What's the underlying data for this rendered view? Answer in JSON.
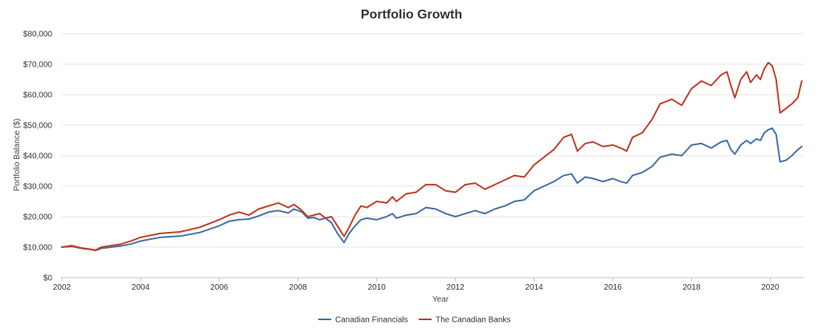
{
  "chart_data": {
    "type": "line",
    "title": "Portfolio Growth",
    "xlabel": "Year",
    "ylabel": "Portfolio Balance ($)",
    "xlim": [
      2002,
      2020.85
    ],
    "ylim": [
      0,
      80000
    ],
    "xticks": [
      2002,
      2004,
      2006,
      2008,
      2010,
      2012,
      2014,
      2016,
      2018,
      2020
    ],
    "xtick_labels": [
      "2002",
      "2004",
      "2006",
      "2008",
      "2010",
      "2012",
      "2014",
      "2016",
      "2018",
      "2020"
    ],
    "yticks": [
      0,
      10000,
      20000,
      30000,
      40000,
      50000,
      60000,
      70000,
      80000
    ],
    "ytick_labels": [
      "$0",
      "$10,000",
      "$20,000",
      "$30,000",
      "$40,000",
      "$50,000",
      "$60,000",
      "$70,000",
      "$80,000"
    ],
    "grid": true,
    "legend_position": "bottom",
    "series": [
      {
        "name": "Canadian Financials",
        "color": "#4572a7",
        "x": [
          2002.0,
          2002.25,
          2002.5,
          2002.75,
          2002.85,
          2003.0,
          2003.25,
          2003.5,
          2003.75,
          2004.0,
          2004.5,
          2005.0,
          2005.5,
          2006.0,
          2006.25,
          2006.5,
          2006.75,
          2007.0,
          2007.25,
          2007.5,
          2007.75,
          2007.9,
          2008.1,
          2008.25,
          2008.4,
          2008.55,
          2008.7,
          2008.85,
          2009.0,
          2009.17,
          2009.3,
          2009.45,
          2009.6,
          2009.75,
          2010.0,
          2010.25,
          2010.4,
          2010.5,
          2010.75,
          2011.0,
          2011.25,
          2011.5,
          2011.75,
          2012.0,
          2012.25,
          2012.5,
          2012.75,
          2013.0,
          2013.25,
          2013.5,
          2013.75,
          2014.0,
          2014.25,
          2014.5,
          2014.75,
          2014.95,
          2015.1,
          2015.3,
          2015.5,
          2015.75,
          2016.0,
          2016.2,
          2016.35,
          2016.5,
          2016.75,
          2017.0,
          2017.2,
          2017.5,
          2017.75,
          2018.0,
          2018.25,
          2018.5,
          2018.75,
          2018.9,
          2019.0,
          2019.1,
          2019.25,
          2019.4,
          2019.5,
          2019.65,
          2019.75,
          2019.85,
          2019.95,
          2020.05,
          2020.15,
          2020.25,
          2020.4,
          2020.55,
          2020.7,
          2020.8
        ],
        "values": [
          10000,
          10200,
          9600,
          9200,
          8900,
          9600,
          10000,
          10400,
          11000,
          12000,
          13200,
          13600,
          14800,
          17000,
          18500,
          19000,
          19200,
          20200,
          21500,
          22000,
          21200,
          22500,
          21500,
          19500,
          19700,
          19000,
          19500,
          18000,
          14500,
          11500,
          14500,
          17000,
          19000,
          19500,
          19000,
          20000,
          21000,
          19500,
          20500,
          21000,
          23000,
          22500,
          21000,
          20000,
          21000,
          22000,
          21000,
          22500,
          23500,
          25000,
          25500,
          28500,
          30000,
          31500,
          33500,
          34000,
          31000,
          33000,
          32500,
          31500,
          32500,
          31500,
          31000,
          33500,
          34500,
          36500,
          39500,
          40500,
          40000,
          43500,
          44000,
          42500,
          44500,
          45000,
          42000,
          40500,
          43500,
          45000,
          44000,
          45500,
          45000,
          47500,
          48500,
          49000,
          47000,
          38000,
          38500,
          40000,
          42000,
          43000
        ]
      },
      {
        "name": "The Canadian Banks",
        "color": "#c0402a",
        "x": [
          2002.0,
          2002.25,
          2002.5,
          2002.75,
          2002.85,
          2003.0,
          2003.25,
          2003.5,
          2003.75,
          2004.0,
          2004.5,
          2005.0,
          2005.5,
          2006.0,
          2006.25,
          2006.5,
          2006.75,
          2007.0,
          2007.25,
          2007.5,
          2007.75,
          2007.9,
          2008.1,
          2008.25,
          2008.4,
          2008.55,
          2008.7,
          2008.85,
          2009.0,
          2009.17,
          2009.3,
          2009.45,
          2009.6,
          2009.75,
          2010.0,
          2010.25,
          2010.4,
          2010.5,
          2010.75,
          2011.0,
          2011.25,
          2011.5,
          2011.75,
          2012.0,
          2012.25,
          2012.5,
          2012.75,
          2013.0,
          2013.25,
          2013.5,
          2013.75,
          2014.0,
          2014.25,
          2014.5,
          2014.75,
          2014.95,
          2015.1,
          2015.3,
          2015.5,
          2015.75,
          2016.0,
          2016.2,
          2016.35,
          2016.5,
          2016.75,
          2017.0,
          2017.2,
          2017.5,
          2017.75,
          2018.0,
          2018.25,
          2018.5,
          2018.75,
          2018.9,
          2019.0,
          2019.1,
          2019.25,
          2019.4,
          2019.5,
          2019.65,
          2019.75,
          2019.85,
          2019.95,
          2020.05,
          2020.15,
          2020.25,
          2020.4,
          2020.55,
          2020.7,
          2020.8
        ],
        "values": [
          10000,
          10500,
          9700,
          9300,
          9000,
          10000,
          10500,
          11000,
          12000,
          13200,
          14500,
          15000,
          16500,
          19000,
          20500,
          21500,
          20500,
          22500,
          23500,
          24500,
          23000,
          24000,
          22000,
          20000,
          20500,
          21000,
          19500,
          20000,
          17000,
          13500,
          16500,
          20500,
          23500,
          23000,
          25000,
          24500,
          26500,
          25000,
          27500,
          28000,
          30500,
          30500,
          28500,
          28000,
          30500,
          31000,
          29000,
          30500,
          32000,
          33500,
          33000,
          37000,
          39500,
          42000,
          46000,
          47000,
          41500,
          44000,
          44500,
          43000,
          43500,
          42500,
          41500,
          46000,
          47500,
          52000,
          57000,
          58500,
          56500,
          62000,
          64500,
          63000,
          66500,
          67500,
          63000,
          59000,
          65000,
          67500,
          64000,
          66500,
          65000,
          68500,
          70500,
          69500,
          65000,
          54000,
          55500,
          57000,
          59000,
          64500
        ]
      }
    ]
  }
}
